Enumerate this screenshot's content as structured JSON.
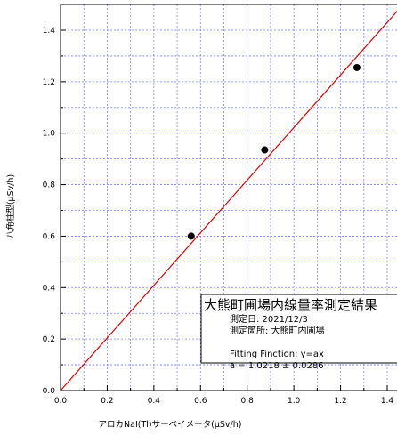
{
  "chart_data": {
    "type": "scatter",
    "xlabel": "アロカNaI(Tl)サーベイメータ(μSv/h)",
    "ylabel": "八角柱型(μSv/h)",
    "xlim": [
      0,
      1.5
    ],
    "ylim": [
      0,
      1.5
    ],
    "x_ticks": [
      "0.0",
      "0.2",
      "0.4",
      "0.6",
      "0.8",
      "1.0",
      "1.2",
      "1.4"
    ],
    "y_ticks": [
      "0.0",
      "0.2",
      "0.4",
      "0.6",
      "0.8",
      "1.0",
      "1.2",
      "1.4"
    ],
    "grid": true,
    "series": [
      {
        "points": [
          {
            "x": 0.56,
            "y": 0.6
          },
          {
            "x": 0.875,
            "y": 0.935
          },
          {
            "x": 1.27,
            "y": 1.255
          }
        ],
        "color": "#000000"
      }
    ],
    "fit_line": {
      "slope": 1.0218,
      "color": "#e00000"
    },
    "annotation": {
      "title": "大熊町圃場内線量率測定結果",
      "date_line": "測定日: 2021/12/3",
      "place_line": "測定箇所: 大熊町内圃場",
      "fit_line_1": "Fitting Finction: y=ax",
      "fit_line_2": "a = 1.0218 ± 0.0286"
    }
  }
}
